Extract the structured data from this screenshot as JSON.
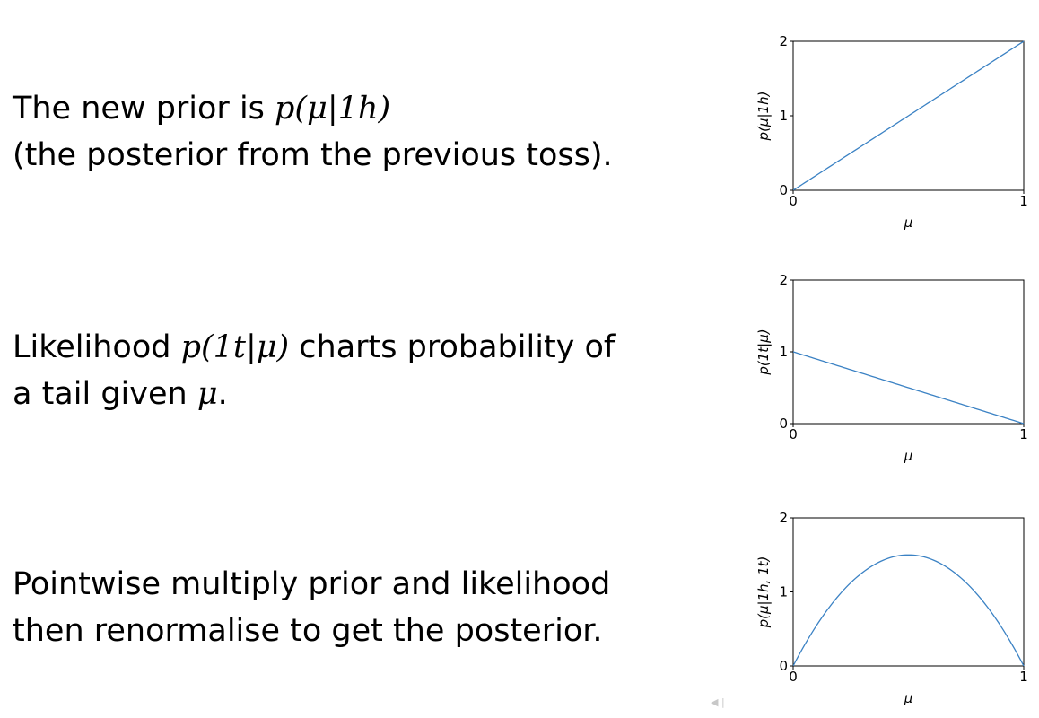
{
  "blocks": [
    {
      "line1_pre": "The new prior is ",
      "line1_math": "p(μ|1h)",
      "line2": "(the posterior from the previous toss)."
    },
    {
      "line1_pre": "Likelihood ",
      "line1_math": "p(1t|μ)",
      "line1_post": " charts probability of",
      "line2_pre": "a tail given ",
      "line2_math": "μ",
      "line2_post": "."
    },
    {
      "line1": "Pointwise multiply prior and likelihood",
      "line2": "then renormalise to get the posterior."
    }
  ],
  "chart_data": [
    {
      "type": "line",
      "function": "2*mu",
      "x": [
        0,
        0.5,
        1
      ],
      "y": [
        0,
        1,
        2
      ],
      "xlim": [
        0,
        1
      ],
      "ylim": [
        0,
        2
      ],
      "xticks": [
        "0",
        "1"
      ],
      "yticks": [
        "0",
        "1",
        "2"
      ],
      "xlabel": "μ",
      "ylabel": "p(μ|1h)",
      "color": "#3b82c4"
    },
    {
      "type": "line",
      "function": "1-mu",
      "x": [
        0,
        0.5,
        1
      ],
      "y": [
        1,
        0.5,
        0
      ],
      "xlim": [
        0,
        1
      ],
      "ylim": [
        0,
        2
      ],
      "xticks": [
        "0",
        "1"
      ],
      "yticks": [
        "0",
        "1",
        "2"
      ],
      "xlabel": "μ",
      "ylabel": "p(1t|μ)",
      "color": "#3b82c4"
    },
    {
      "type": "line",
      "function": "6*mu*(1-mu)",
      "x": [
        0,
        0.25,
        0.5,
        0.75,
        1
      ],
      "y": [
        0,
        1.125,
        1.5,
        1.125,
        0
      ],
      "xlim": [
        0,
        1
      ],
      "ylim": [
        0,
        2
      ],
      "xticks": [
        "0",
        "1"
      ],
      "yticks": [
        "0",
        "1",
        "2"
      ],
      "xlabel": "μ",
      "ylabel": "p(μ|1h, 1t)",
      "color": "#3b82c4"
    }
  ],
  "nav_hint": "◀ |"
}
